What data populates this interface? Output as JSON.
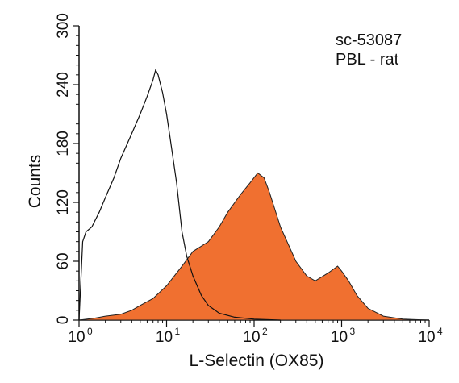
{
  "chart_data": {
    "type": "area",
    "xlabel": "L-Selectin (OX85)",
    "ylabel": "Counts",
    "xscale": "log",
    "xlim": [
      1,
      10000
    ],
    "ylim": [
      0,
      300
    ],
    "x_ticks": [
      {
        "value": 1,
        "base": "10",
        "exp": "0"
      },
      {
        "value": 10,
        "base": "10",
        "exp": "1"
      },
      {
        "value": 100,
        "base": "10",
        "exp": "2"
      },
      {
        "value": 1000,
        "base": "10",
        "exp": "3"
      },
      {
        "value": 10000,
        "base": "10",
        "exp": "4"
      }
    ],
    "y_ticks": [
      "0",
      "60",
      "120",
      "180",
      "240",
      "300"
    ],
    "annotations": [
      "sc-53087",
      "PBL - rat"
    ],
    "colors": {
      "filled": "#f07030",
      "outline": "#111111"
    },
    "series": [
      {
        "style": "outline",
        "x": [
          1,
          1.1,
          1.2,
          1.4,
          1.7,
          2,
          2.5,
          3,
          4,
          5,
          6,
          7,
          7.5,
          8,
          9,
          10,
          11,
          13,
          15,
          17,
          20,
          25,
          30,
          40,
          60,
          100,
          200
        ],
        "y": [
          0,
          80,
          90,
          95,
          110,
          125,
          145,
          165,
          190,
          210,
          228,
          245,
          255,
          250,
          232,
          210,
          185,
          140,
          90,
          65,
          45,
          25,
          15,
          7,
          3,
          1,
          0
        ]
      },
      {
        "style": "filled",
        "x": [
          1,
          1.5,
          2,
          3,
          4,
          5,
          7,
          10,
          15,
          20,
          30,
          40,
          50,
          70,
          90,
          110,
          130,
          150,
          200,
          300,
          400,
          500,
          700,
          900,
          1000,
          1200,
          1500,
          2000,
          3000,
          5000,
          10000
        ],
        "y": [
          0,
          2,
          4,
          6,
          10,
          15,
          22,
          35,
          55,
          70,
          80,
          95,
          110,
          128,
          140,
          150,
          145,
          130,
          95,
          60,
          45,
          40,
          48,
          55,
          50,
          40,
          25,
          12,
          4,
          1,
          0
        ]
      }
    ]
  }
}
